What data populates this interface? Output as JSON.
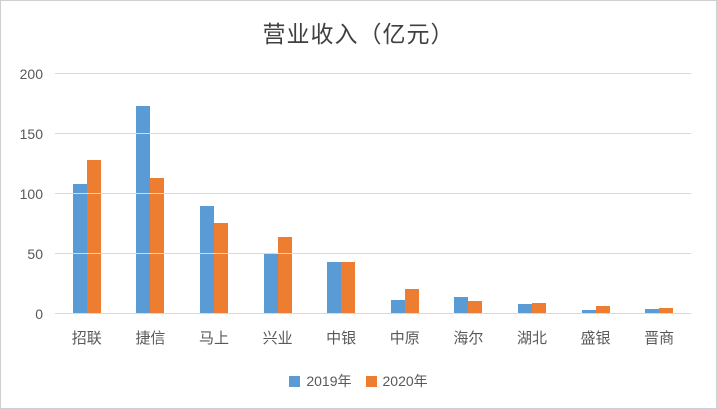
{
  "chart_data": {
    "type": "bar",
    "title": "营业收入（亿元）",
    "categories": [
      "招联",
      "捷信",
      "马上",
      "兴业",
      "中银",
      "中原",
      "海尔",
      "湖北",
      "盛银",
      "晋商"
    ],
    "series": [
      {
        "name": "2019年",
        "color": "#5B9BD5",
        "values": [
          108,
          173,
          90,
          50,
          43,
          12,
          14,
          8,
          3,
          4
        ]
      },
      {
        "name": "2020年",
        "color": "#ED7D31",
        "values": [
          128,
          113,
          76,
          64,
          43,
          21,
          11,
          9,
          7,
          5
        ]
      }
    ],
    "ylim": [
      0,
      200
    ],
    "yticks": [
      0,
      50,
      100,
      150,
      200
    ],
    "grid": true,
    "legend_position": "bottom"
  }
}
